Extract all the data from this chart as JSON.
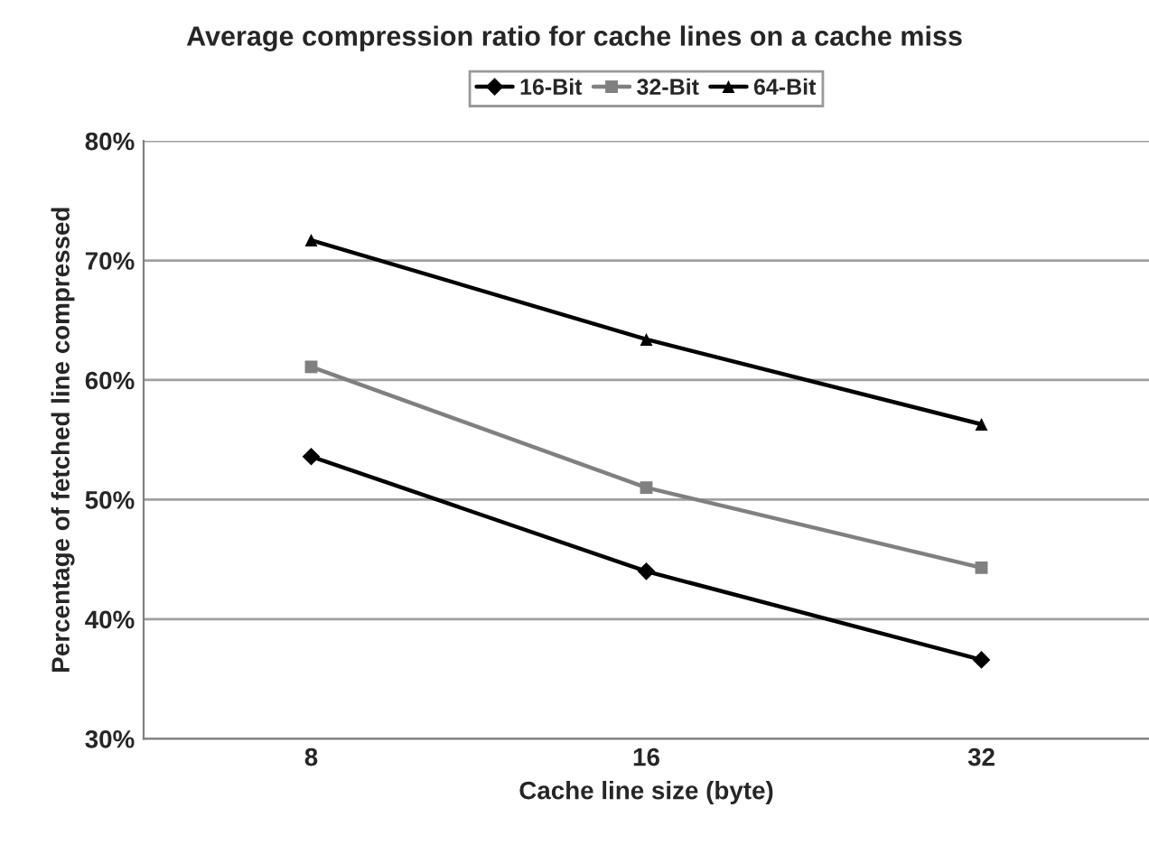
{
  "chart_data": {
    "type": "line",
    "title": "Average compression ratio for cache lines on a cache miss",
    "xlabel": "Cache line size (byte)",
    "ylabel": "Percentage of fetched line compressed",
    "categories": [
      "8",
      "16",
      "32"
    ],
    "series": [
      {
        "name": "16-Bit",
        "color": "#000000",
        "marker": "diamond",
        "values": [
          53.6,
          44.0,
          36.6
        ]
      },
      {
        "name": "32-Bit",
        "color": "#808080",
        "marker": "square",
        "values": [
          61.1,
          51.0,
          44.3
        ]
      },
      {
        "name": "64-Bit",
        "color": "#000000",
        "marker": "triangle",
        "values": [
          71.7,
          63.4,
          56.3
        ]
      }
    ],
    "ylim": [
      30,
      80
    ],
    "yticks": [
      {
        "value": 30,
        "label": "30%"
      },
      {
        "value": 40,
        "label": "40%"
      },
      {
        "value": 50,
        "label": "50%"
      },
      {
        "value": 60,
        "label": "60%"
      },
      {
        "value": 70,
        "label": "70%"
      },
      {
        "value": 80,
        "label": "80%"
      }
    ],
    "grid": "y",
    "legend": "top",
    "line_style": "solid"
  }
}
